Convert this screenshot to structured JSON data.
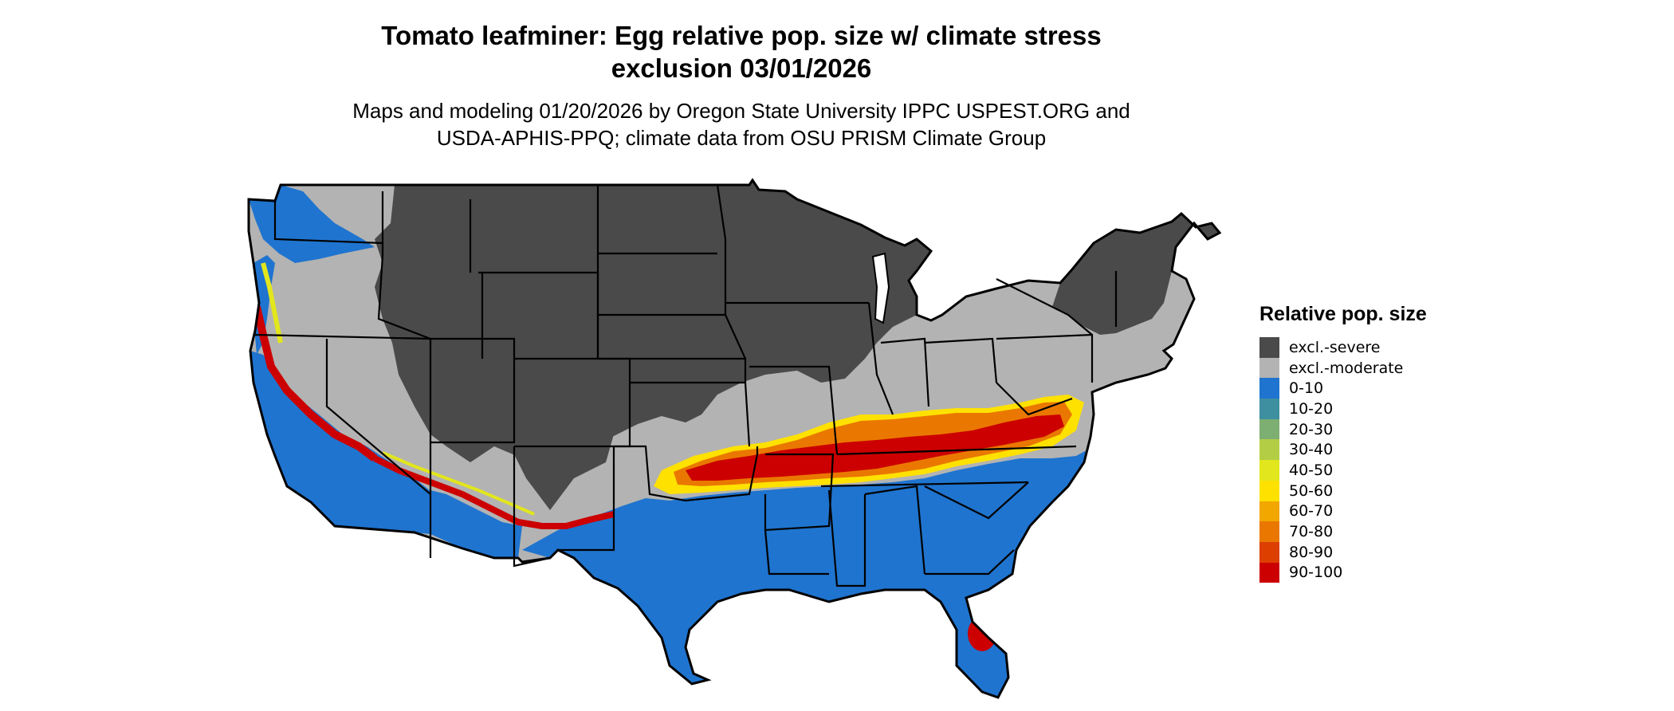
{
  "title": {
    "line1": "Tomato leafminer: Egg relative pop. size w/ climate stress",
    "line2": "exclusion 03/01/2026"
  },
  "subtitle": {
    "line1": "Maps and modeling 01/20/2026 by Oregon State University IPPC USPEST.ORG and",
    "line2": "USDA-APHIS-PPQ; climate data from OSU PRISM Climate Group"
  },
  "legend": {
    "title": "Relative pop. size",
    "items": [
      {
        "label": "excl.-severe",
        "color": "#4a4a4a"
      },
      {
        "label": "excl.-moderate",
        "color": "#b3b3b3"
      },
      {
        "label": "0-10",
        "color": "#1f74cf"
      },
      {
        "label": "10-20",
        "color": "#3e8fa0"
      },
      {
        "label": "20-30",
        "color": "#7dae72"
      },
      {
        "label": "30-40",
        "color": "#b3ce45"
      },
      {
        "label": "40-50",
        "color": "#e2e61c"
      },
      {
        "label": "50-60",
        "color": "#ffe100"
      },
      {
        "label": "60-70",
        "color": "#f2a700"
      },
      {
        "label": "70-80",
        "color": "#ea7800"
      },
      {
        "label": "80-90",
        "color": "#dd3f00"
      },
      {
        "label": "90-100",
        "color": "#cc0000"
      }
    ]
  }
}
